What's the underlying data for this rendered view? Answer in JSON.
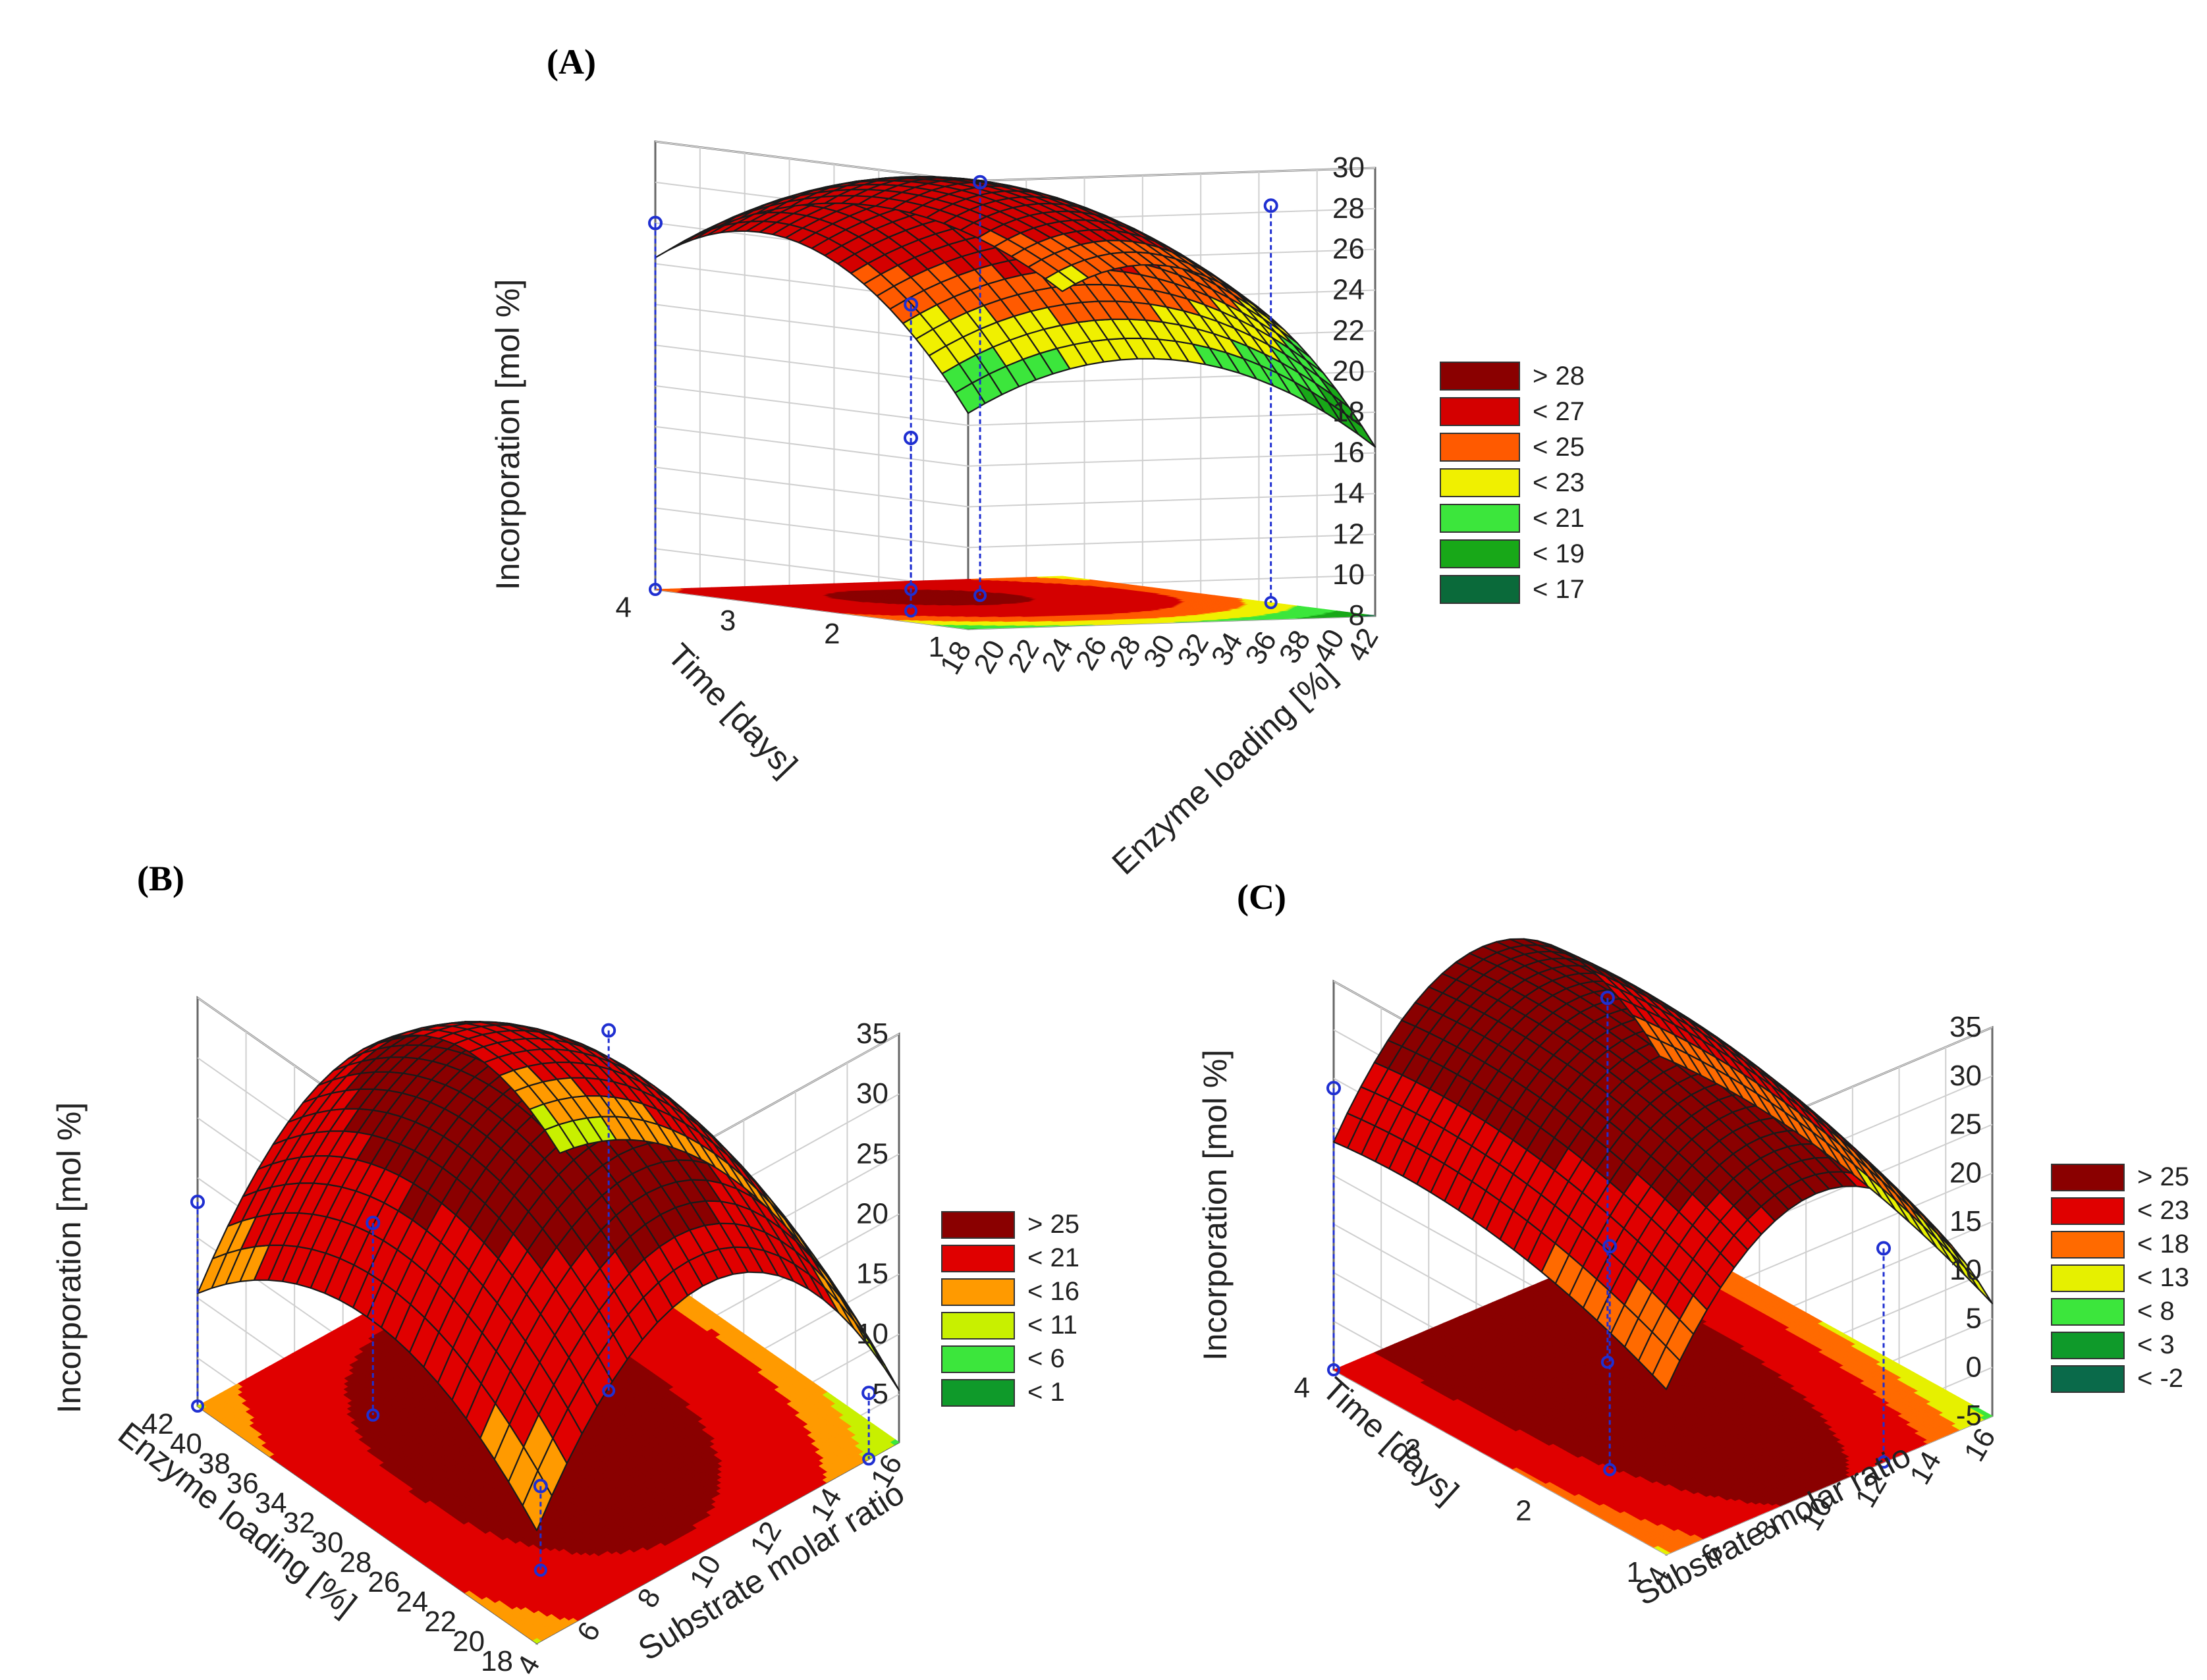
{
  "chart_data": [
    {
      "id": "A",
      "type": "surface3d",
      "panel_label": "(A)",
      "zlabel": "Incorporation [mol %]",
      "xlabel": "Time [days]",
      "ylabel": "Enzyme loading [%]",
      "x_ticks": [
        "4",
        "3",
        "2",
        "1"
      ],
      "y_ticks": [
        "18",
        "20",
        "22",
        "24",
        "26",
        "28",
        "30",
        "32",
        "34",
        "36",
        "38",
        "40",
        "42"
      ],
      "z_ticks": [
        "8",
        "10",
        "12",
        "14",
        "16",
        "18",
        "20",
        "22",
        "24",
        "26",
        "28",
        "30"
      ],
      "xlim": [
        1,
        4
      ],
      "ylim": [
        18,
        42
      ],
      "zlim": [
        8,
        30
      ],
      "model": {
        "peak": 28.6,
        "x0": 3.0,
        "y0": 28,
        "ax": 1.9,
        "ay": 0.024,
        "sat": 29.8
      },
      "legend": [
        "> 28",
        "< 27",
        "< 25",
        "< 23",
        "< 21",
        "< 19",
        "< 17"
      ],
      "legend_colors": [
        "#8a0000",
        "#d40000",
        "#ff5a00",
        "#f0f000",
        "#3ce63c",
        "#18a818",
        "#0a6a3a"
      ],
      "legend_thresholds": [
        28,
        27,
        25,
        23,
        21,
        19,
        17
      ],
      "points": [
        [
          4,
          18,
          26.0
        ],
        [
          3,
          31,
          28.3
        ],
        [
          2,
          42,
          27.5
        ],
        [
          3.5,
          30,
          22.0
        ],
        [
          2.2,
          22,
          16.5
        ]
      ]
    },
    {
      "id": "B",
      "type": "surface3d",
      "panel_label": "(B)",
      "zlabel": "Incorporation [mol %]",
      "xlabel": "Enzyme loading [%]",
      "ylabel": "Substrate molar ratio",
      "x_ticks": [
        "42",
        "40",
        "38",
        "36",
        "34",
        "32",
        "30",
        "28",
        "26",
        "24",
        "22",
        "20",
        "18"
      ],
      "y_ticks": [
        "4",
        "6",
        "8",
        "10",
        "12",
        "14",
        "16"
      ],
      "z_ticks": [
        "5",
        "10",
        "15",
        "20",
        "25",
        "30",
        "35"
      ],
      "xlim": [
        18,
        42
      ],
      "ylim": [
        4,
        16
      ],
      "zlim": [
        1,
        35
      ],
      "model": {
        "peak": 31.0,
        "x0": 30,
        "y0": 9.5,
        "ax": 0.055,
        "ay": 0.42,
        "sat": 34.5
      },
      "legend": [
        "> 25",
        "< 21",
        "< 16",
        "< 11",
        "< 6",
        "< 1"
      ],
      "legend_colors": [
        "#8a0000",
        "#e00000",
        "#ff9a00",
        "#c8f000",
        "#3ce63c",
        "#0f9a2a"
      ],
      "legend_thresholds": [
        25,
        21,
        16,
        11,
        6,
        1
      ],
      "points": [
        [
          42,
          4,
          18.0
        ],
        [
          36,
          7,
          17.0
        ],
        [
          30,
          12,
          31.0
        ],
        [
          22,
          6,
          8.0
        ],
        [
          18,
          15,
          6.5
        ]
      ]
    },
    {
      "id": "C",
      "type": "surface3d",
      "panel_label": "(C)",
      "zlabel": "Incorporation [mol %]",
      "xlabel": "Time [days]",
      "ylabel": "Substrate molar ratio",
      "x_ticks": [
        "4",
        "3",
        "2",
        "1"
      ],
      "y_ticks": [
        "4",
        "6",
        "8",
        "10",
        "12",
        "14",
        "16"
      ],
      "z_ticks": [
        "-5",
        "0",
        "5",
        "10",
        "15",
        "20",
        "25",
        "30",
        "35"
      ],
      "xlim": [
        1,
        4
      ],
      "ylim": [
        4,
        16
      ],
      "zlim": [
        -5,
        35
      ],
      "model": {
        "peak": 32.5,
        "x0": 3.4,
        "y0": 9.5,
        "ax": 1.2,
        "ay": 0.45,
        "sat": 34.0
      },
      "legend": [
        "> 25",
        "< 23",
        "< 18",
        "< 13",
        "< 8",
        "< 3",
        "< -2"
      ],
      "legend_colors": [
        "#8a0000",
        "#e00000",
        "#ff6a00",
        "#e6f000",
        "#3ce63c",
        "#0f9a2a",
        "#0a6a4a"
      ],
      "legend_thresholds": [
        25,
        23,
        18,
        13,
        8,
        3,
        -2
      ],
      "points": [
        [
          4,
          4,
          24.0
        ],
        [
          3,
          10,
          32.5
        ],
        [
          2,
          6,
          18.0
        ],
        [
          1,
          12,
          17.0
        ]
      ]
    }
  ]
}
